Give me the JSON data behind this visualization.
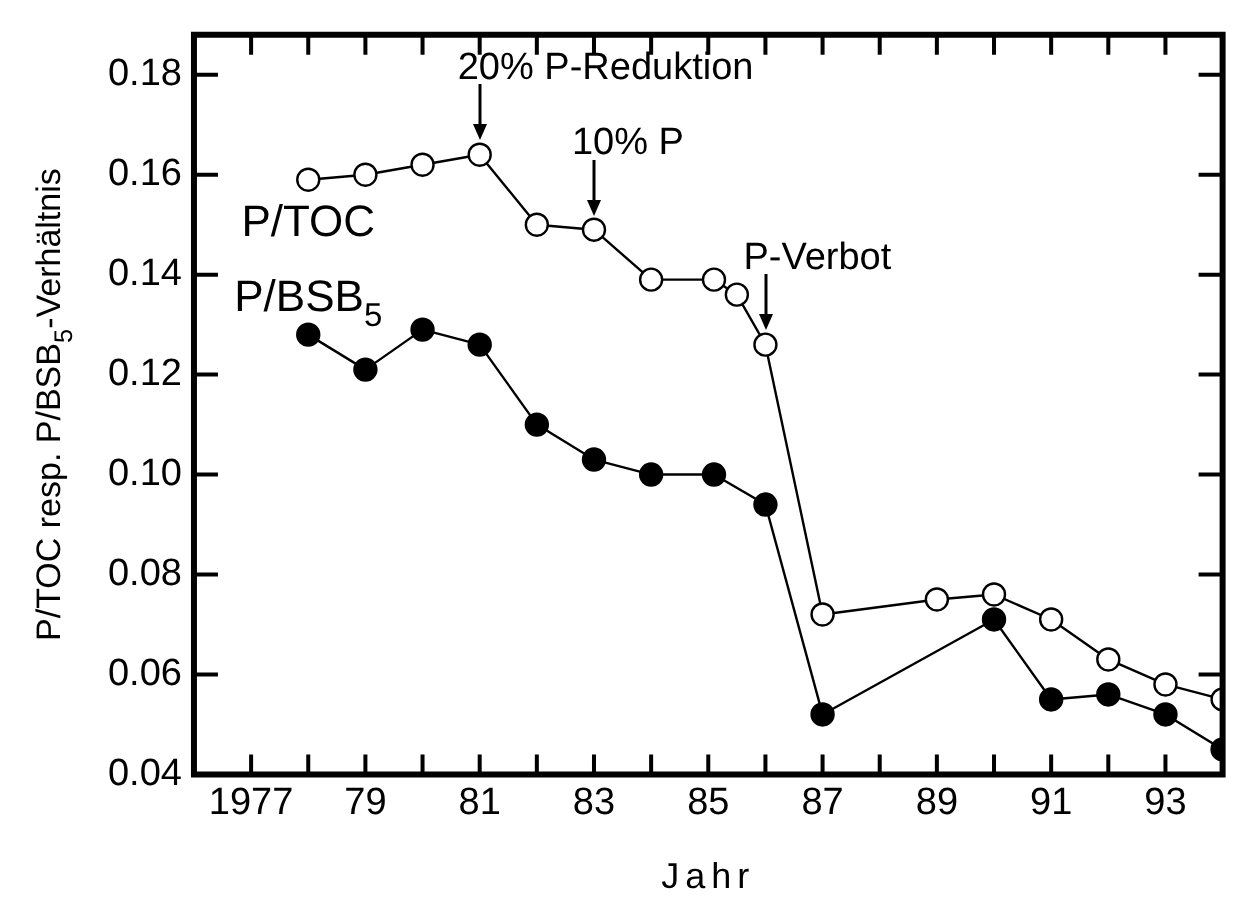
{
  "chart_data": {
    "type": "line",
    "xlabel": "Jahr",
    "ylabel": "P/TOC resp. P/BSB$_{5}$-Verhältnis",
    "xlim": [
      1976,
      1994
    ],
    "xticks": [
      {
        "value": 1977,
        "label": "1977"
      },
      {
        "value": 1978,
        "label": null
      },
      {
        "value": 1979,
        "label": "79"
      },
      {
        "value": 1980,
        "label": null
      },
      {
        "value": 1981,
        "label": "81"
      },
      {
        "value": 1982,
        "label": null
      },
      {
        "value": 1983,
        "label": "83"
      },
      {
        "value": 1984,
        "label": null
      },
      {
        "value": 1985,
        "label": "85"
      },
      {
        "value": 1986,
        "label": null
      },
      {
        "value": 1987,
        "label": "87"
      },
      {
        "value": 1988,
        "label": null
      },
      {
        "value": 1989,
        "label": "89"
      },
      {
        "value": 1990,
        "label": null
      },
      {
        "value": 1991,
        "label": "91"
      },
      {
        "value": 1992,
        "label": null
      },
      {
        "value": 1993,
        "label": "93"
      }
    ],
    "ylim": [
      0.04,
      0.188
    ],
    "yticks": [
      {
        "value": 0.04,
        "label": "0.04"
      },
      {
        "value": 0.06,
        "label": "0.06"
      },
      {
        "value": 0.08,
        "label": "0.08"
      },
      {
        "value": 0.1,
        "label": "0.10"
      },
      {
        "value": 0.12,
        "label": "0.12"
      },
      {
        "value": 0.14,
        "label": "0.14"
      },
      {
        "value": 0.16,
        "label": "0.16"
      },
      {
        "value": 0.18,
        "label": "0.18"
      }
    ],
    "grid": false,
    "legend": false,
    "marker": "circle",
    "line_style": "solid",
    "series": [
      {
        "name": "P/TOC",
        "color": "#ffffff",
        "x": [
          1978,
          1979,
          1980,
          1981,
          1982,
          1983,
          1984,
          1985.1,
          1985.5,
          1986,
          1987,
          1989,
          1990,
          1991,
          1992,
          1993,
          1994
        ],
        "values": [
          0.159,
          0.16,
          0.162,
          0.164,
          0.15,
          0.149,
          0.139,
          0.139,
          0.136,
          0.126,
          0.072,
          0.075,
          0.076,
          0.071,
          0.063,
          0.058,
          0.055
        ]
      },
      {
        "name": "P/BSB$_{5}$",
        "color": "#000000",
        "x": [
          1978,
          1979,
          1980,
          1981,
          1982,
          1983,
          1984,
          1985.1,
          1986,
          1987,
          1990,
          1991,
          1992,
          1993,
          1994
        ],
        "values": [
          0.128,
          0.121,
          0.129,
          0.126,
          0.11,
          0.103,
          0.1,
          0.1,
          0.094,
          0.052,
          0.071,
          0.055,
          0.056,
          0.052,
          0.045
        ]
      }
    ],
    "annotations": [
      {
        "text": "20% P-Reduktion",
        "x": 1981,
        "y": 0.164
      },
      {
        "text": "10% P",
        "x": 1983,
        "y": 0.149
      },
      {
        "text": "P-Verbot",
        "x": 1986,
        "y": 0.126
      }
    ]
  }
}
